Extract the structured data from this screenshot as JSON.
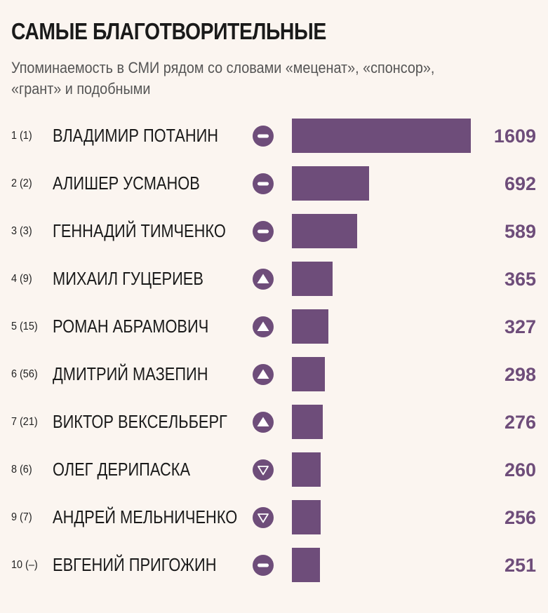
{
  "title": "САМЫЕ БЛАГОТВОРИТЕЛЬНЫЕ",
  "subtitle": "Упоминаемость в СМИ рядом со словами «меценат», «спонсор», «грант» и подобными",
  "colors": {
    "bar": "#6e4d7a",
    "value": "#6e4d7a",
    "background": "#fbf5f0"
  },
  "chart_data": {
    "type": "bar",
    "orientation": "horizontal",
    "title": "САМЫЕ БЛАГОТВОРИТЕЛЬНЫЕ",
    "subtitle": "Упоминаемость в СМИ рядом со словами «меценат», «спонсор», «грант» и подобными",
    "xlabel": "",
    "ylabel": "",
    "xlim": [
      0,
      1609
    ],
    "grid": false,
    "legend": "none",
    "categories": [
      "ВЛАДИМИР ПОТАНИН",
      "АЛИШЕР УСМАНОВ",
      "ГЕННАДИЙ ТИМЧЕНКО",
      "МИХАИЛ ГУЦЕРИЕВ",
      "РОМАН АБРАМОВИЧ",
      "ДМИТРИЙ МАЗЕПИН",
      "ВИКТОР ВЕКСЕЛЬБЕРГ",
      "ОЛЕГ ДЕРИПАСКА",
      "АНДРЕЙ МЕЛЬНИЧЕНКО",
      "ЕВГЕНИЙ ПРИГОЖИН"
    ],
    "values": [
      1609,
      692,
      589,
      365,
      327,
      298,
      276,
      260,
      256,
      251
    ],
    "rows": [
      {
        "rank": "1 (1)",
        "name": "ВЛАДИМИР ПОТАНИН",
        "trend": "same-icon",
        "value": 1609
      },
      {
        "rank": "2 (2)",
        "name": "АЛИШЕР УСМАНОВ",
        "trend": "same-icon",
        "value": 692
      },
      {
        "rank": "3 (3)",
        "name": "ГЕННАДИЙ ТИМЧЕНКО",
        "trend": "same-icon",
        "value": 589
      },
      {
        "rank": "4 (9)",
        "name": "МИХАИЛ ГУЦЕРИЕВ",
        "trend": "up-icon",
        "value": 365
      },
      {
        "rank": "5 (15)",
        "name": "РОМАН АБРАМОВИЧ",
        "trend": "up-icon",
        "value": 327
      },
      {
        "rank": "6 (56)",
        "name": "ДМИТРИЙ МАЗЕПИН",
        "trend": "up-icon",
        "value": 298
      },
      {
        "rank": "7 (21)",
        "name": "ВИКТОР ВЕКСЕЛЬБЕРГ",
        "trend": "up-icon",
        "value": 276
      },
      {
        "rank": "8 (6)",
        "name": "ОЛЕГ ДЕРИПАСКА",
        "trend": "down-icon",
        "value": 260
      },
      {
        "rank": "9 (7)",
        "name": "АНДРЕЙ МЕЛЬНИЧЕНКО",
        "trend": "down-icon",
        "value": 256
      },
      {
        "rank": "10 (–)",
        "name": "ЕВГЕНИЙ ПРИГОЖИН",
        "trend": "same-icon",
        "value": 251
      }
    ]
  }
}
